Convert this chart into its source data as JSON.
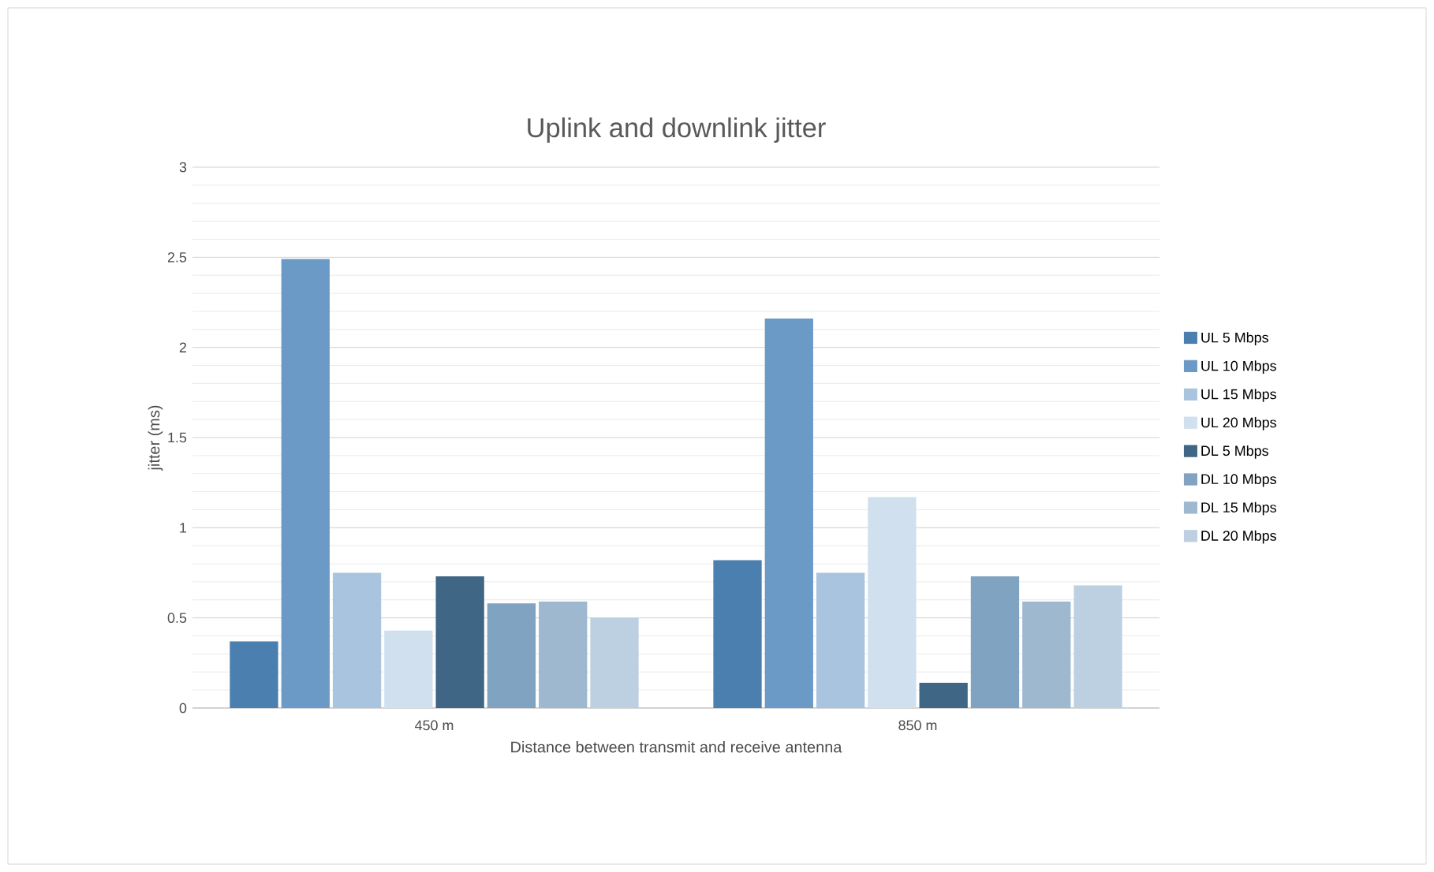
{
  "chart_data": {
    "type": "bar",
    "title": "Uplink and downlink jitter",
    "xlabel": "Distance between transmit and receive antenna",
    "ylabel": "jitter (ms)",
    "categories": [
      "450 m",
      "850 m"
    ],
    "series": [
      {
        "name": "UL 5 Mbps",
        "color": "#4a7fb0",
        "values": [
          0.37,
          0.82
        ]
      },
      {
        "name": "UL 10 Mbps",
        "color": "#6c9ac6",
        "values": [
          2.49,
          2.16
        ]
      },
      {
        "name": "UL 15 Mbps",
        "color": "#a9c4de",
        "values": [
          0.75,
          0.75
        ]
      },
      {
        "name": "UL 20 Mbps",
        "color": "#d0e0ef",
        "values": [
          0.43,
          1.17
        ]
      },
      {
        "name": "DL 5 Mbps",
        "color": "#3f6685",
        "values": [
          0.73,
          0.14
        ]
      },
      {
        "name": "DL 10 Mbps",
        "color": "#7fa3c0",
        "values": [
          0.58,
          0.73
        ]
      },
      {
        "name": "DL 15 Mbps",
        "color": "#9db8cf",
        "values": [
          0.59,
          0.59
        ]
      },
      {
        "name": "DL 20 Mbps",
        "color": "#bcd0e1",
        "values": [
          0.5,
          0.68
        ]
      }
    ],
    "ylim": [
      0,
      3
    ],
    "yticks": [
      0,
      0.5,
      1,
      1.5,
      2,
      2.5,
      3
    ],
    "grid": "y",
    "legend": "right"
  }
}
